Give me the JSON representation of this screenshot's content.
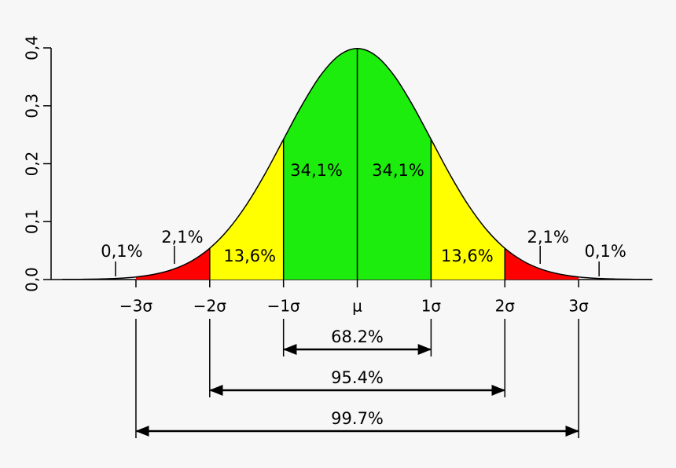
{
  "chart_data": {
    "type": "normal",
    "xlim": [
      -4.15,
      4.0
    ],
    "ylim": [
      0,
      0.4
    ],
    "xticks": [
      {
        "value": -3,
        "label": "−3σ"
      },
      {
        "value": -2,
        "label": "−2σ"
      },
      {
        "value": -1,
        "label": "−1σ"
      },
      {
        "value": 0,
        "label": "μ"
      },
      {
        "value": 1,
        "label": "1σ"
      },
      {
        "value": 2,
        "label": "2σ"
      },
      {
        "value": 3,
        "label": "3σ"
      }
    ],
    "yticks": [
      {
        "value": 0,
        "label": "0,0"
      },
      {
        "value": 0.1,
        "label": "0,1"
      },
      {
        "value": 0.2,
        "label": "0,2"
      },
      {
        "value": 0.3,
        "label": "0,3"
      },
      {
        "value": 0.4,
        "label": "0,4"
      }
    ],
    "curve": {
      "x": [
        -4,
        -3.75,
        -3.5,
        -3.25,
        -3,
        -2.75,
        -2.5,
        -2.25,
        -2,
        -1.75,
        -1.5,
        -1.25,
        -1,
        -0.75,
        -0.5,
        -0.25,
        0,
        0.25,
        0.5,
        0.75,
        1,
        1.25,
        1.5,
        1.75,
        2,
        2.25,
        2.5,
        2.75,
        3,
        3.25,
        3.5,
        3.75,
        4
      ],
      "values": [
        0.0001,
        0.0004,
        0.0009,
        0.002,
        0.0044,
        0.0091,
        0.0175,
        0.0317,
        0.054,
        0.0863,
        0.1295,
        0.1826,
        0.242,
        0.3011,
        0.3521,
        0.3867,
        0.3989,
        0.3867,
        0.3521,
        0.3011,
        0.242,
        0.1826,
        0.1295,
        0.0863,
        0.054,
        0.0317,
        0.0175,
        0.0091,
        0.0044,
        0.002,
        0.0009,
        0.0004,
        0.0001
      ]
    },
    "regions": {
      "edges": [
        -3,
        -2,
        -1,
        0,
        1,
        2,
        3
      ],
      "colors": [
        "#ff0000",
        "#ffff00",
        "#1ded0d",
        "#1ded0d",
        "#ffff00",
        "#ff0000"
      ],
      "values": [
        2.1,
        13.6,
        34.1,
        34.1,
        13.6,
        2.1
      ],
      "value_labels": [
        "2,1%",
        "13,6%",
        "34,1%",
        "34,1%",
        "13,6%",
        "2,1%"
      ]
    },
    "tails": {
      "values": [
        0.1,
        0.1
      ],
      "value_labels": [
        "0,1%",
        "0,1%"
      ]
    },
    "intervals": {
      "from": [
        -1,
        -2,
        -3
      ],
      "to": [
        1,
        2,
        3
      ],
      "values": [
        68.2,
        95.4,
        99.7
      ],
      "value_labels": [
        "68.2%",
        "95.4%",
        "99.7%"
      ]
    }
  }
}
